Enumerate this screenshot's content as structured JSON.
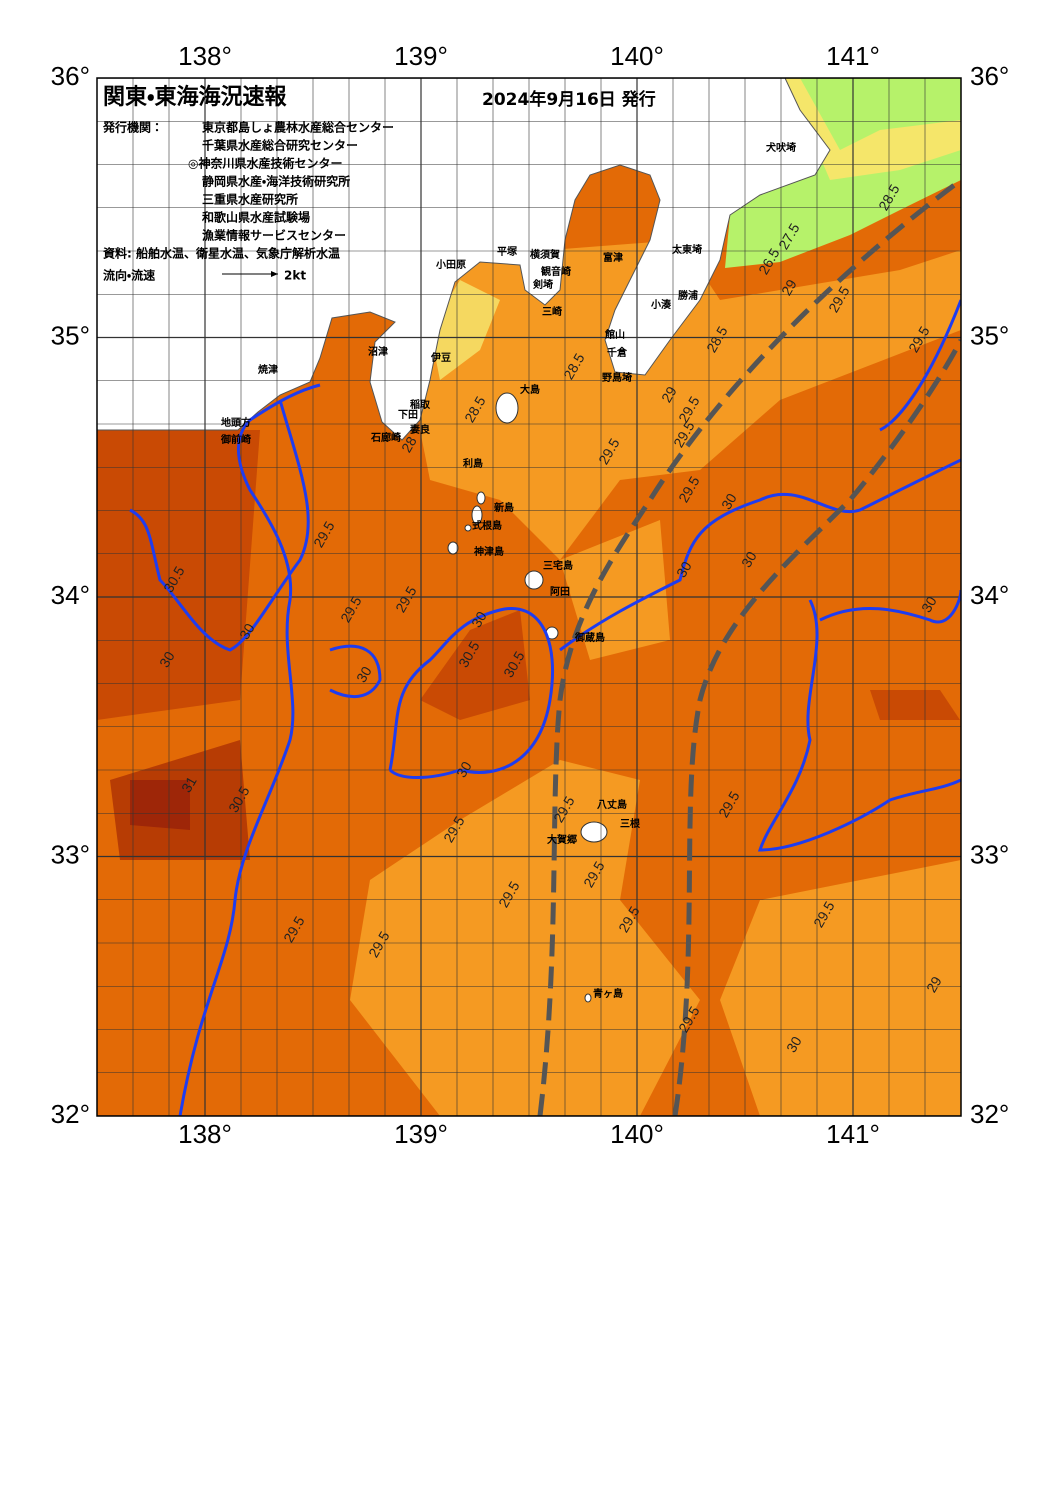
{
  "header": {
    "title": "関東・東海海況速報",
    "date": "2024年9月16日 発行",
    "issuer_label": "発行機関：",
    "issuers": [
      "東京都島しょ農林水産総合センター",
      "千葉県水産総合研究センター",
      "◎神奈川県水産技術センター",
      "静岡県水産・海洋技術研究所",
      "三重県水産研究所",
      "和歌山県水産試験場",
      "漁業情報サービスセンター"
    ],
    "source": "資料: 船舶水温、衛星水温、気象庁解析水温"
  },
  "legend": {
    "label": "流向・流速",
    "scale": "2kt"
  },
  "axes": {
    "xlim": [
      137.5,
      141.5
    ],
    "ylim": [
      32,
      36
    ],
    "lon_ticks": [
      {
        "value": 138,
        "label": "138°"
      },
      {
        "value": 139,
        "label": "139°"
      },
      {
        "value": 140,
        "label": "140°"
      },
      {
        "value": 141,
        "label": "141°"
      }
    ],
    "lat_ticks": [
      {
        "value": 32,
        "label": "32°"
      },
      {
        "value": 33,
        "label": "33°"
      },
      {
        "value": 34,
        "label": "34°"
      },
      {
        "value": 35,
        "label": "35°"
      },
      {
        "value": 36,
        "label": "36°"
      }
    ]
  },
  "places": [
    "犬吠埼",
    "太東埼",
    "勝浦",
    "小湊",
    "館山",
    "千倉",
    "野島埼",
    "富津",
    "横須賀",
    "観音崎",
    "剣埼",
    "三崎",
    "平塚",
    "小田原",
    "大島",
    "稲取",
    "下田",
    "石廊崎",
    "妻良",
    "伊豆",
    "沼津",
    "焼津",
    "地頭方",
    "御前崎",
    "利島",
    "新島",
    "式根島",
    "神津島",
    "三宅島",
    "阿田",
    "御蔵島",
    "八丈島",
    "三根",
    "大賀郷",
    "青ヶ島"
  ],
  "contours": [
    "28.5",
    "26.5",
    "27.5",
    "28.5",
    "29",
    "29.5",
    "29.5",
    "28.5",
    "28",
    "28.5",
    "29",
    "29.5",
    "29.5",
    "29.5",
    "29.5",
    "30",
    "30",
    "30",
    "30.5",
    "30",
    "29.5",
    "30",
    "29.5",
    "29.5",
    "30",
    "30",
    "30",
    "30.5",
    "30.5",
    "30",
    "31",
    "30.5",
    "29.5",
    "29.5",
    "29.5",
    "29.5",
    "29.5",
    "29.5",
    "29.5",
    "29.5",
    "29.5",
    "29",
    "29.5",
    "30"
  ]
}
